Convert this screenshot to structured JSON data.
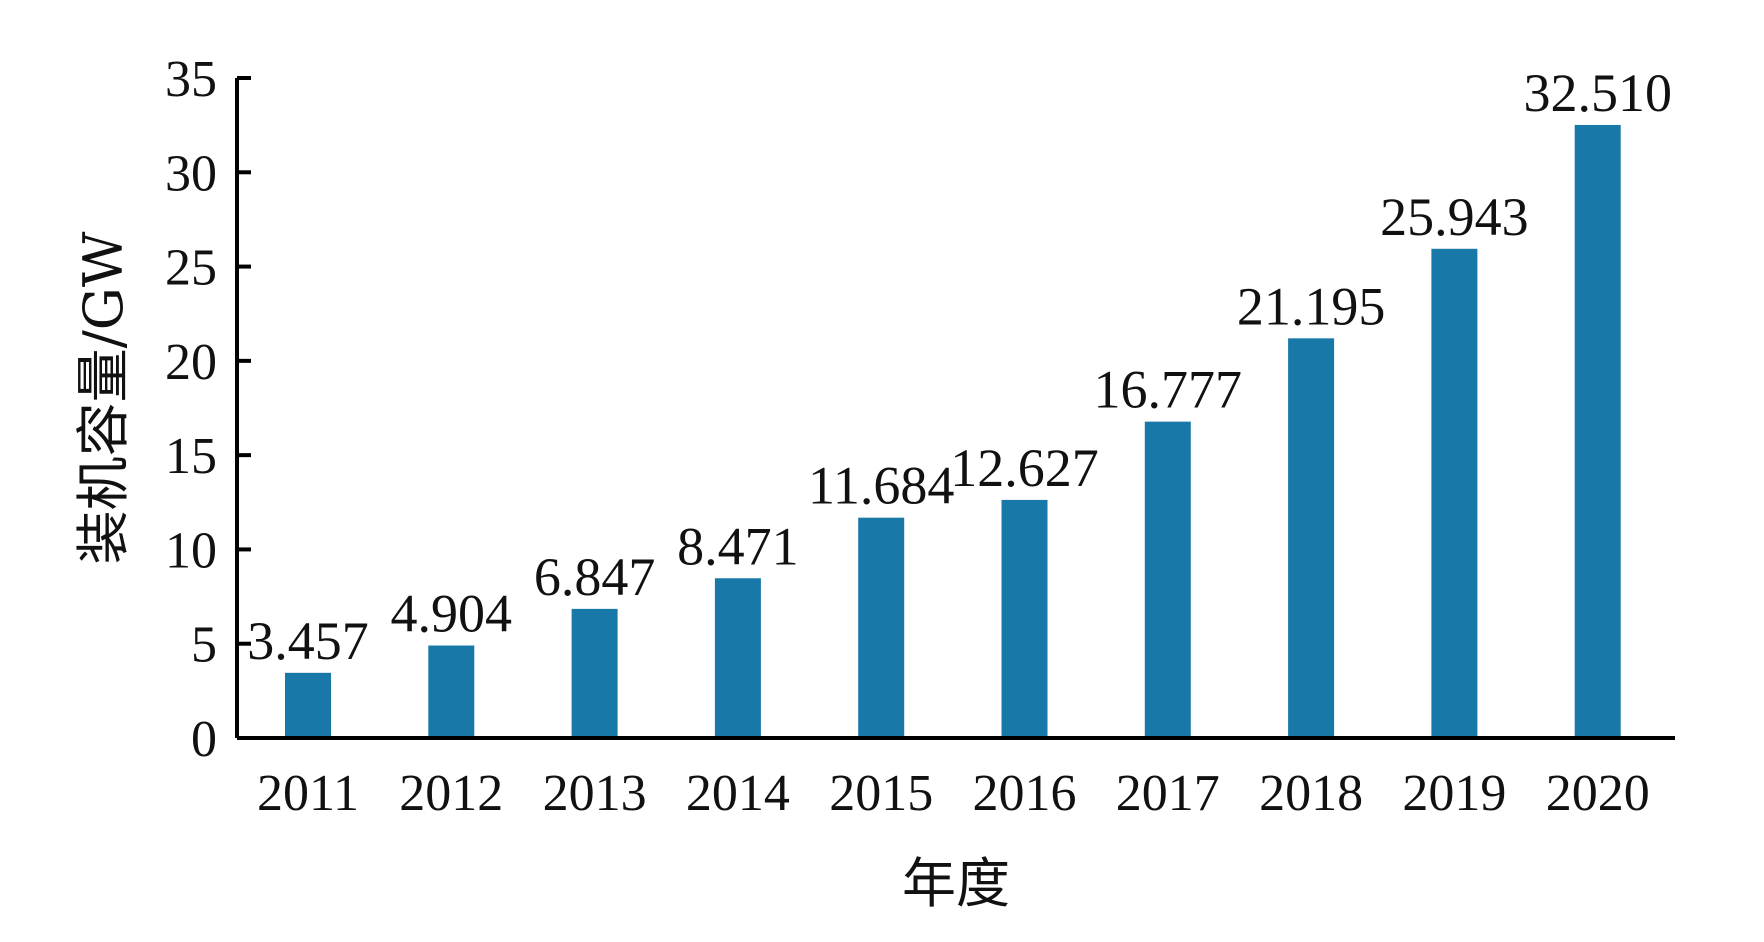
{
  "chart_data": {
    "type": "bar",
    "categories": [
      "2011",
      "2012",
      "2013",
      "2014",
      "2015",
      "2016",
      "2017",
      "2018",
      "2019",
      "2020"
    ],
    "values": [
      3.457,
      4.904,
      6.847,
      8.471,
      11.684,
      12.627,
      16.777,
      21.195,
      25.943,
      32.51
    ],
    "value_labels": [
      "3.457",
      "4.904",
      "6.847",
      "8.471",
      "11.684",
      "12.627",
      "16.777",
      "21.195",
      "25.943",
      "32.510"
    ],
    "xlabel": "年度",
    "ylabel": "装机容量/GW",
    "ylim": [
      0,
      35
    ],
    "yticks": [
      0,
      5,
      10,
      15,
      20,
      25,
      30,
      35
    ],
    "ytick_labels": [
      "0",
      "5",
      "10",
      "15",
      "20",
      "25",
      "30",
      "35"
    ],
    "grid": false,
    "legend": "none",
    "bar_color": "#1878a8"
  }
}
